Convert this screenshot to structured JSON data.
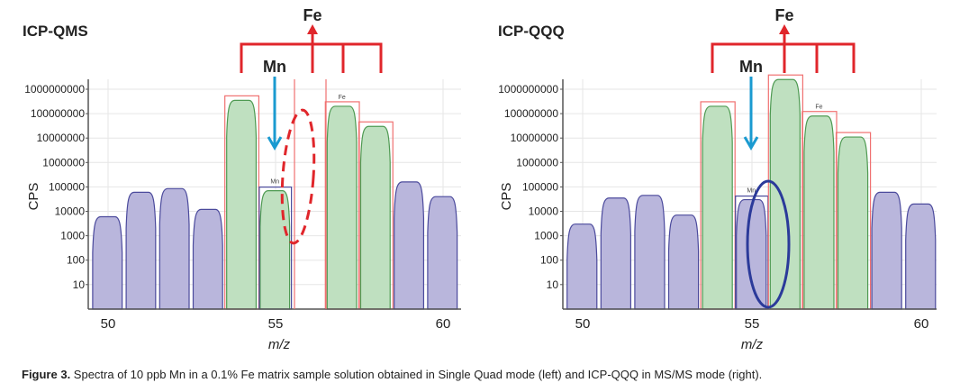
{
  "colors": {
    "other_fill": "#b9b6dc",
    "other_stroke": "#4b4a9c",
    "matrix_fill": "#bfe0c0",
    "matrix_stroke": "#4e9a52",
    "box_red": "#f07070",
    "annot_red": "#e0262b",
    "arrow_blue": "#1a9ad0",
    "ellipse_blue": "#2b3a9a",
    "grid": "#e6e6e6"
  },
  "chart_data": [
    {
      "type": "area",
      "title": "ICP-QMS",
      "xlabel": "m/z",
      "ylabel": "CPS",
      "yscale": "log",
      "xlim": [
        49.4,
        60.5
      ],
      "ylim": [
        1,
        2500000000
      ],
      "x_ticks": [
        50,
        55,
        60
      ],
      "x_tick_labels": [
        "50",
        "55",
        "60"
      ],
      "y_tick_labels": [
        "1000000000",
        "100000000",
        "10000000",
        "1000000",
        "100000",
        "10000",
        "1000",
        "100",
        "10"
      ],
      "y_tick_values": [
        1000000000,
        100000000,
        10000000,
        1000000,
        100000,
        10000,
        1000,
        100,
        10
      ],
      "grid": true,
      "peaks": [
        {
          "mz": 50,
          "cps": 6000,
          "kind": "other"
        },
        {
          "mz": 51,
          "cps": 60000,
          "kind": "other"
        },
        {
          "mz": 52,
          "cps": 85000,
          "kind": "other"
        },
        {
          "mz": 53,
          "cps": 12000,
          "kind": "other"
        },
        {
          "mz": 54,
          "cps": 350000000,
          "kind": "matrix",
          "label": ""
        },
        {
          "mz": 55,
          "cps": 70000,
          "kind": "analyte",
          "label": "Mn"
        },
        {
          "mz": 57,
          "cps": 200000000,
          "kind": "matrix",
          "label": "Fe"
        },
        {
          "mz": 58,
          "cps": 30000000,
          "kind": "matrix",
          "label": ""
        },
        {
          "mz": 59,
          "cps": 160000,
          "kind": "other"
        },
        {
          "mz": 60,
          "cps": 40000,
          "kind": "other"
        }
      ],
      "annotations": {
        "analyte": "Mn",
        "matrix": "Fe"
      }
    },
    {
      "type": "area",
      "title": "ICP-QQQ",
      "xlabel": "m/z",
      "ylabel": "CPS",
      "yscale": "log",
      "xlim": [
        49.4,
        60.5
      ],
      "ylim": [
        1,
        2500000000
      ],
      "x_ticks": [
        50,
        55,
        60
      ],
      "x_tick_labels": [
        "50",
        "55",
        "60"
      ],
      "y_tick_labels": [
        "1000000000",
        "100000000",
        "10000000",
        "1000000",
        "100000",
        "10000",
        "1000",
        "100",
        "10"
      ],
      "y_tick_values": [
        1000000000,
        100000000,
        10000000,
        1000000,
        100000,
        10000,
        1000,
        100,
        10
      ],
      "grid": true,
      "peaks": [
        {
          "mz": 50,
          "cps": 3000,
          "kind": "other"
        },
        {
          "mz": 51,
          "cps": 35000,
          "kind": "other"
        },
        {
          "mz": 52,
          "cps": 45000,
          "kind": "other"
        },
        {
          "mz": 53,
          "cps": 7000,
          "kind": "other"
        },
        {
          "mz": 54,
          "cps": 200000000,
          "kind": "matrix",
          "label": ""
        },
        {
          "mz": 55,
          "cps": 30000,
          "kind": "analyte",
          "label": "Mn"
        },
        {
          "mz": 56,
          "cps": 2500000000,
          "kind": "matrix",
          "label": ""
        },
        {
          "mz": 57,
          "cps": 80000000,
          "kind": "matrix",
          "label": "Fe"
        },
        {
          "mz": 58,
          "cps": 11000000,
          "kind": "matrix",
          "label": ""
        },
        {
          "mz": 59,
          "cps": 60000,
          "kind": "other"
        },
        {
          "mz": 60,
          "cps": 20000,
          "kind": "other"
        }
      ],
      "annotations": {
        "analyte": "Mn",
        "matrix": "Fe"
      }
    }
  ],
  "caption": {
    "label": "Figure 3.",
    "text": " Spectra of 10 ppb Mn in a 0.1% Fe matrix sample solution obtained in Single Quad mode (left) and ICP-QQQ in MS/MS mode (right)."
  }
}
